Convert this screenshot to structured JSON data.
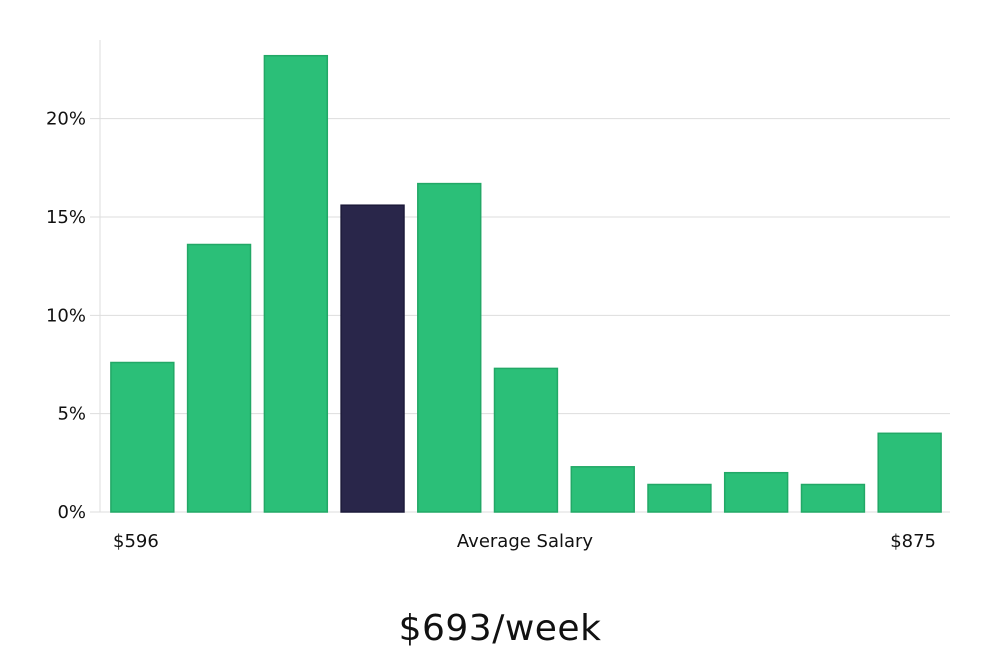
{
  "chart_data": {
    "type": "bar",
    "values": [
      7.6,
      13.6,
      23.2,
      15.6,
      16.7,
      7.3,
      2.3,
      1.4,
      2.0,
      1.4,
      4.0
    ],
    "highlight_index": 3,
    "ylim": [
      0,
      24
    ],
    "yticks": [
      0,
      5,
      10,
      15,
      20
    ],
    "ytick_labels": [
      "0%",
      "5%",
      "10%",
      "15%",
      "20%"
    ],
    "x_min_label": "$596",
    "x_max_label": "$875",
    "xlabel": "Average Salary",
    "grid": true,
    "colors": {
      "bar": "#2bbf78",
      "highlight": "#29264a",
      "grid": "#dddddd"
    }
  },
  "caption": "$693/week"
}
